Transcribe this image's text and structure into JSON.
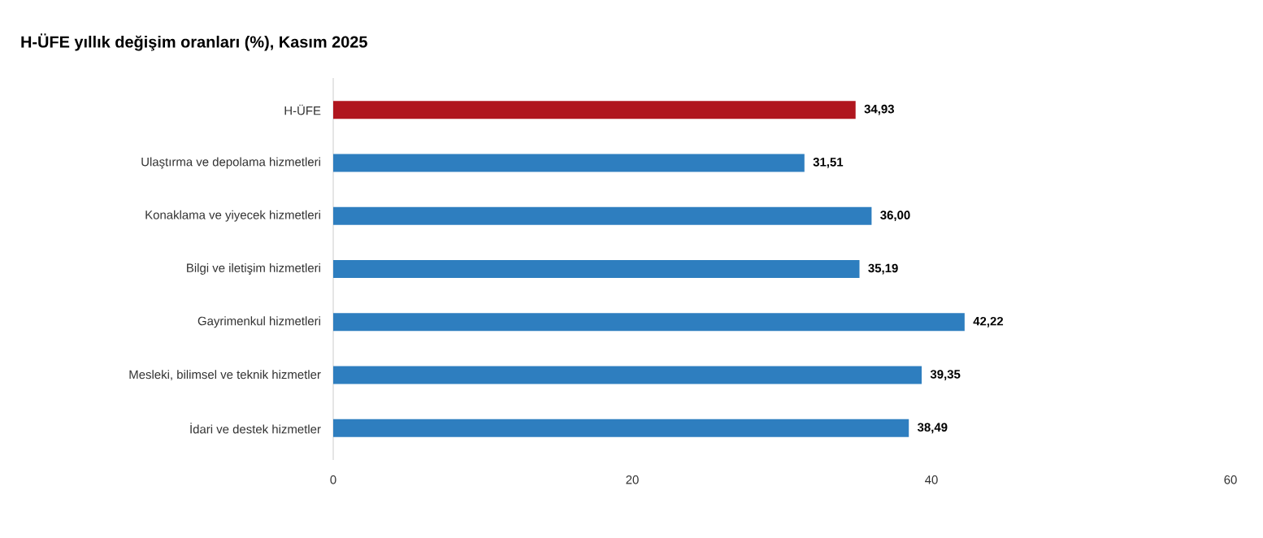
{
  "chart_data": {
    "type": "bar",
    "orientation": "horizontal",
    "title": "H-ÜFE yıllık değişim oranları (%), Kasım 2025",
    "categories": [
      "H-ÜFE",
      "Ulaştırma ve depolama hizmetleri",
      "Konaklama ve yiyecek hizmetleri",
      "Bilgi ve iletişim hizmetleri",
      "Gayrimenkul hizmetleri",
      "Mesleki, bilimsel ve teknik hizmetler",
      "İdari ve destek hizmetler"
    ],
    "values": [
      34.93,
      31.51,
      36.0,
      35.19,
      42.22,
      39.35,
      38.49
    ],
    "value_labels": [
      "34,93",
      "31,51",
      "36,00",
      "35,19",
      "42,22",
      "39,35",
      "38,49"
    ],
    "colors": [
      "#b0161e",
      "#2e7ebf",
      "#2e7ebf",
      "#2e7ebf",
      "#2e7ebf",
      "#2e7ebf",
      "#2e7ebf"
    ],
    "xlim": [
      0,
      60
    ],
    "xticks": [
      0,
      20,
      40,
      60
    ]
  }
}
